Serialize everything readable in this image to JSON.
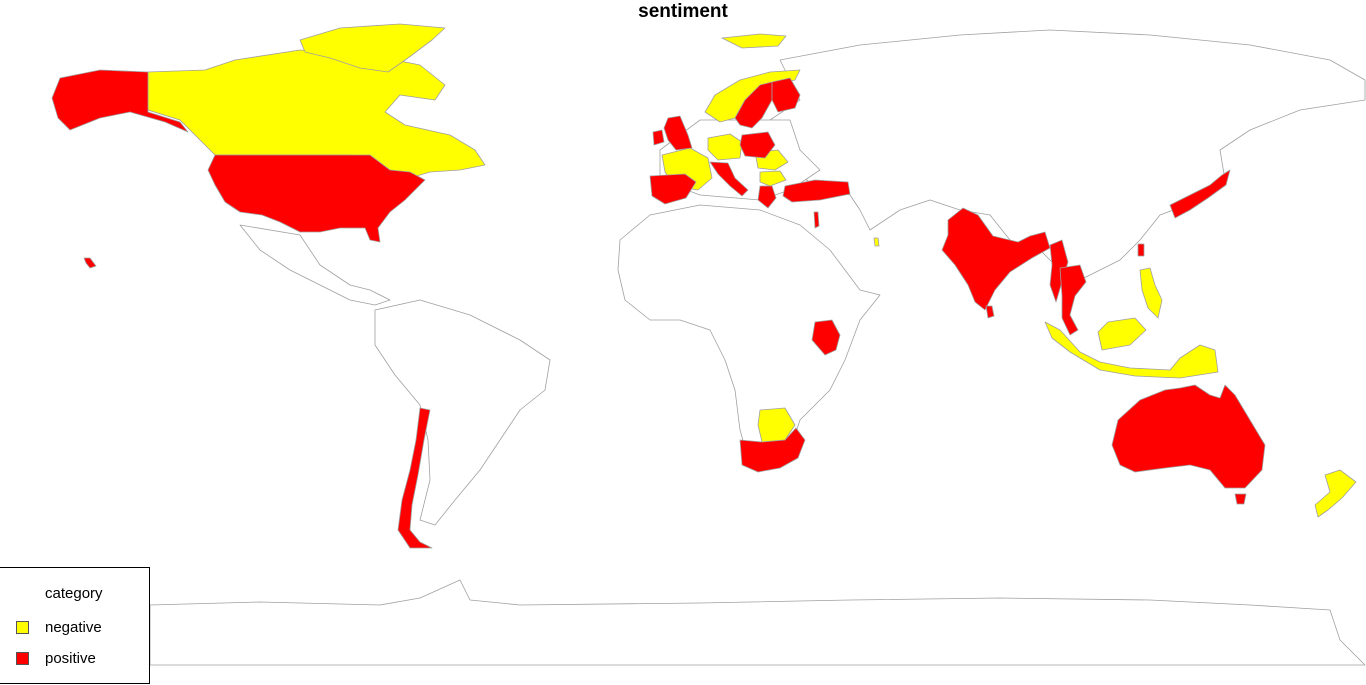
{
  "title": "sentiment",
  "colors": {
    "negative": "#ffff00",
    "positive": "#ff0000",
    "none": "#ffffff",
    "border": "#a0a0a0"
  },
  "legend": {
    "title": "category",
    "items": [
      {
        "label": "negative",
        "color": "#ffff00"
      },
      {
        "label": "positive",
        "color": "#ff0000"
      }
    ]
  },
  "regions": {
    "negative": [
      "Canada",
      "Greenland",
      "Svalbard",
      "Norway",
      "France",
      "Germany",
      "Romania",
      "Bulgaria",
      "Philippines",
      "Malaysia",
      "Indonesia",
      "Botswana",
      "New Zealand",
      "Qatar"
    ],
    "positive": [
      "United States",
      "Alaska",
      "Hawaii",
      "Spain",
      "Portugal",
      "United Kingdom",
      "Ireland",
      "Sweden",
      "Finland",
      "Poland",
      "Italy",
      "Greece",
      "Turkey",
      "Israel",
      "India",
      "Sri Lanka",
      "Myanmar",
      "Thailand",
      "Japan",
      "Taiwan",
      "Kenya",
      "South Africa",
      "Chile",
      "Australia",
      "Tasmania"
    ]
  }
}
